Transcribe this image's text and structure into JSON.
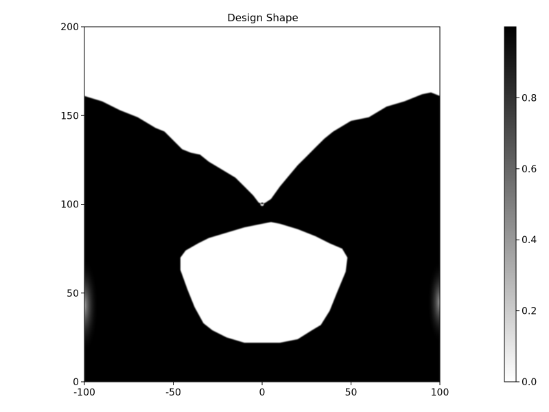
{
  "chart_data": {
    "type": "heatmap",
    "title": "Design Shape",
    "xlabel": "",
    "ylabel": "",
    "xlim": [
      -100,
      100
    ],
    "ylim": [
      0,
      200
    ],
    "x_ticks": [
      -100,
      -50,
      0,
      50,
      100
    ],
    "y_ticks": [
      0,
      50,
      100,
      150,
      200
    ],
    "x_tick_labels": [
      "-100",
      "-50",
      "0",
      "50",
      "100"
    ],
    "y_tick_labels": [
      "0",
      "50",
      "100",
      "150",
      "200"
    ],
    "grid": false,
    "colormap": {
      "name": "grayscale",
      "low_color": "#ffffff",
      "high_color": "#000000",
      "range": [
        0,
        1
      ],
      "ticks": [
        0.0,
        0.2,
        0.4,
        0.6,
        0.8
      ],
      "tick_labels": [
        "0.0",
        "0.2",
        "0.4",
        "0.6",
        "0.8"
      ]
    },
    "shape": {
      "fill_value": 1.0,
      "background_value": 0.0,
      "top_boundary": [
        [
          -100,
          161
        ],
        [
          -90,
          158
        ],
        [
          -80,
          153
        ],
        [
          -70,
          149
        ],
        [
          -60,
          143
        ],
        [
          -55,
          141
        ],
        [
          -50,
          136
        ],
        [
          -45,
          131
        ],
        [
          -40,
          129
        ],
        [
          -35,
          128
        ],
        [
          -30,
          124
        ],
        [
          -25,
          121
        ],
        [
          -20,
          118
        ],
        [
          -15,
          115
        ],
        [
          -10,
          110
        ],
        [
          -5,
          105
        ],
        [
          -2,
          101
        ],
        [
          0,
          100
        ],
        [
          2,
          101
        ],
        [
          5,
          103
        ],
        [
          10,
          110
        ],
        [
          15,
          116
        ],
        [
          20,
          122
        ],
        [
          25,
          127
        ],
        [
          30,
          132
        ],
        [
          35,
          137
        ],
        [
          40,
          141
        ],
        [
          45,
          144
        ],
        [
          50,
          147
        ],
        [
          55,
          148
        ],
        [
          60,
          149
        ],
        [
          70,
          155
        ],
        [
          80,
          158
        ],
        [
          90,
          162
        ],
        [
          95,
          163
        ],
        [
          100,
          161
        ]
      ],
      "hole_boundary": [
        [
          -30,
          81
        ],
        [
          -20,
          84
        ],
        [
          -10,
          87
        ],
        [
          0,
          89
        ],
        [
          5,
          90
        ],
        [
          10,
          89
        ],
        [
          20,
          86
        ],
        [
          30,
          82
        ],
        [
          38,
          78
        ],
        [
          45,
          75
        ],
        [
          48,
          70
        ],
        [
          47,
          62
        ],
        [
          42,
          50
        ],
        [
          38,
          40
        ],
        [
          33,
          32
        ],
        [
          28,
          29
        ],
        [
          20,
          24
        ],
        [
          10,
          22
        ],
        [
          0,
          22
        ],
        [
          -10,
          22
        ],
        [
          -20,
          25
        ],
        [
          -28,
          29
        ],
        [
          -33,
          33
        ],
        [
          -38,
          42
        ],
        [
          -42,
          52
        ],
        [
          -46,
          63
        ],
        [
          -46,
          70
        ],
        [
          -43,
          74
        ],
        [
          -36,
          78
        ]
      ],
      "pin_hole": [
        0,
        100
      ]
    }
  }
}
